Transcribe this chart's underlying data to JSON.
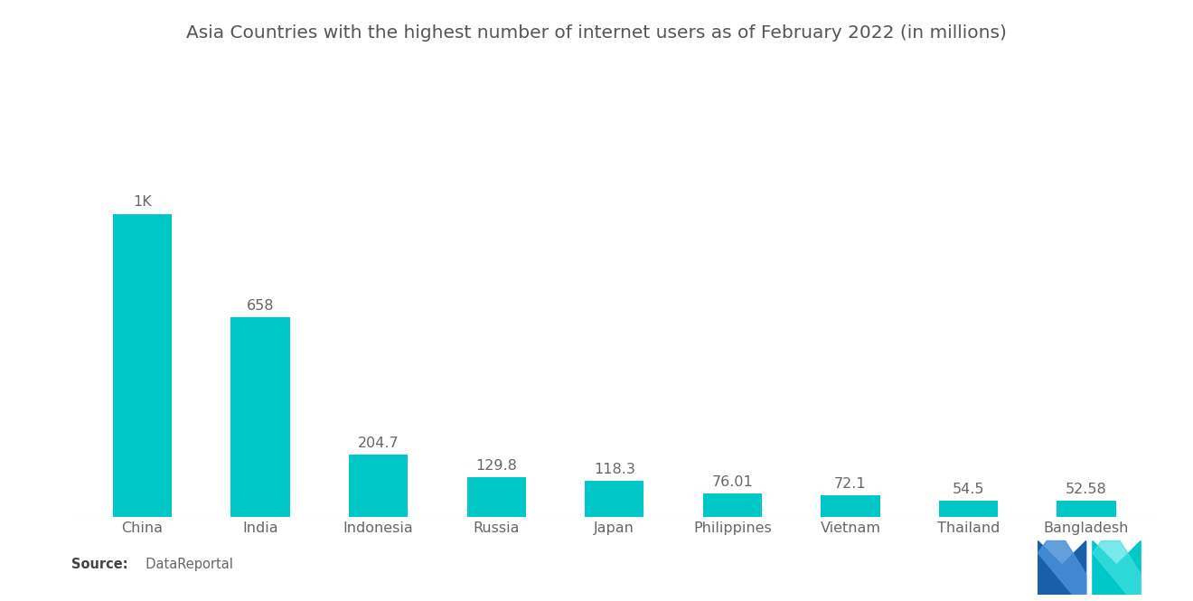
{
  "title": "Asia Countries with the highest number of internet users as of February 2022 (in millions)",
  "categories": [
    "China",
    "India",
    "Indonesia",
    "Russia",
    "Japan",
    "Philippines",
    "Vietnam",
    "Thailand",
    "Bangladesh"
  ],
  "values": [
    1000,
    658,
    204.7,
    129.8,
    118.3,
    76.01,
    72.1,
    54.5,
    52.58
  ],
  "labels": [
    "1K",
    "658",
    "204.7",
    "129.8",
    "118.3",
    "76.01",
    "72.1",
    "54.5",
    "52.58"
  ],
  "bar_color": "#00C8C8",
  "background_color": "#ffffff",
  "title_fontsize": 14.5,
  "label_fontsize": 11.5,
  "tick_fontsize": 11.5,
  "source_label": "Source:",
  "source_value": "  DataReportal",
  "ylim": [
    0,
    1150
  ],
  "bar_width": 0.5,
  "logo_blue": "#1a5fa8",
  "logo_teal": "#00C8C8",
  "logo_light_blue": "#4a90d9"
}
